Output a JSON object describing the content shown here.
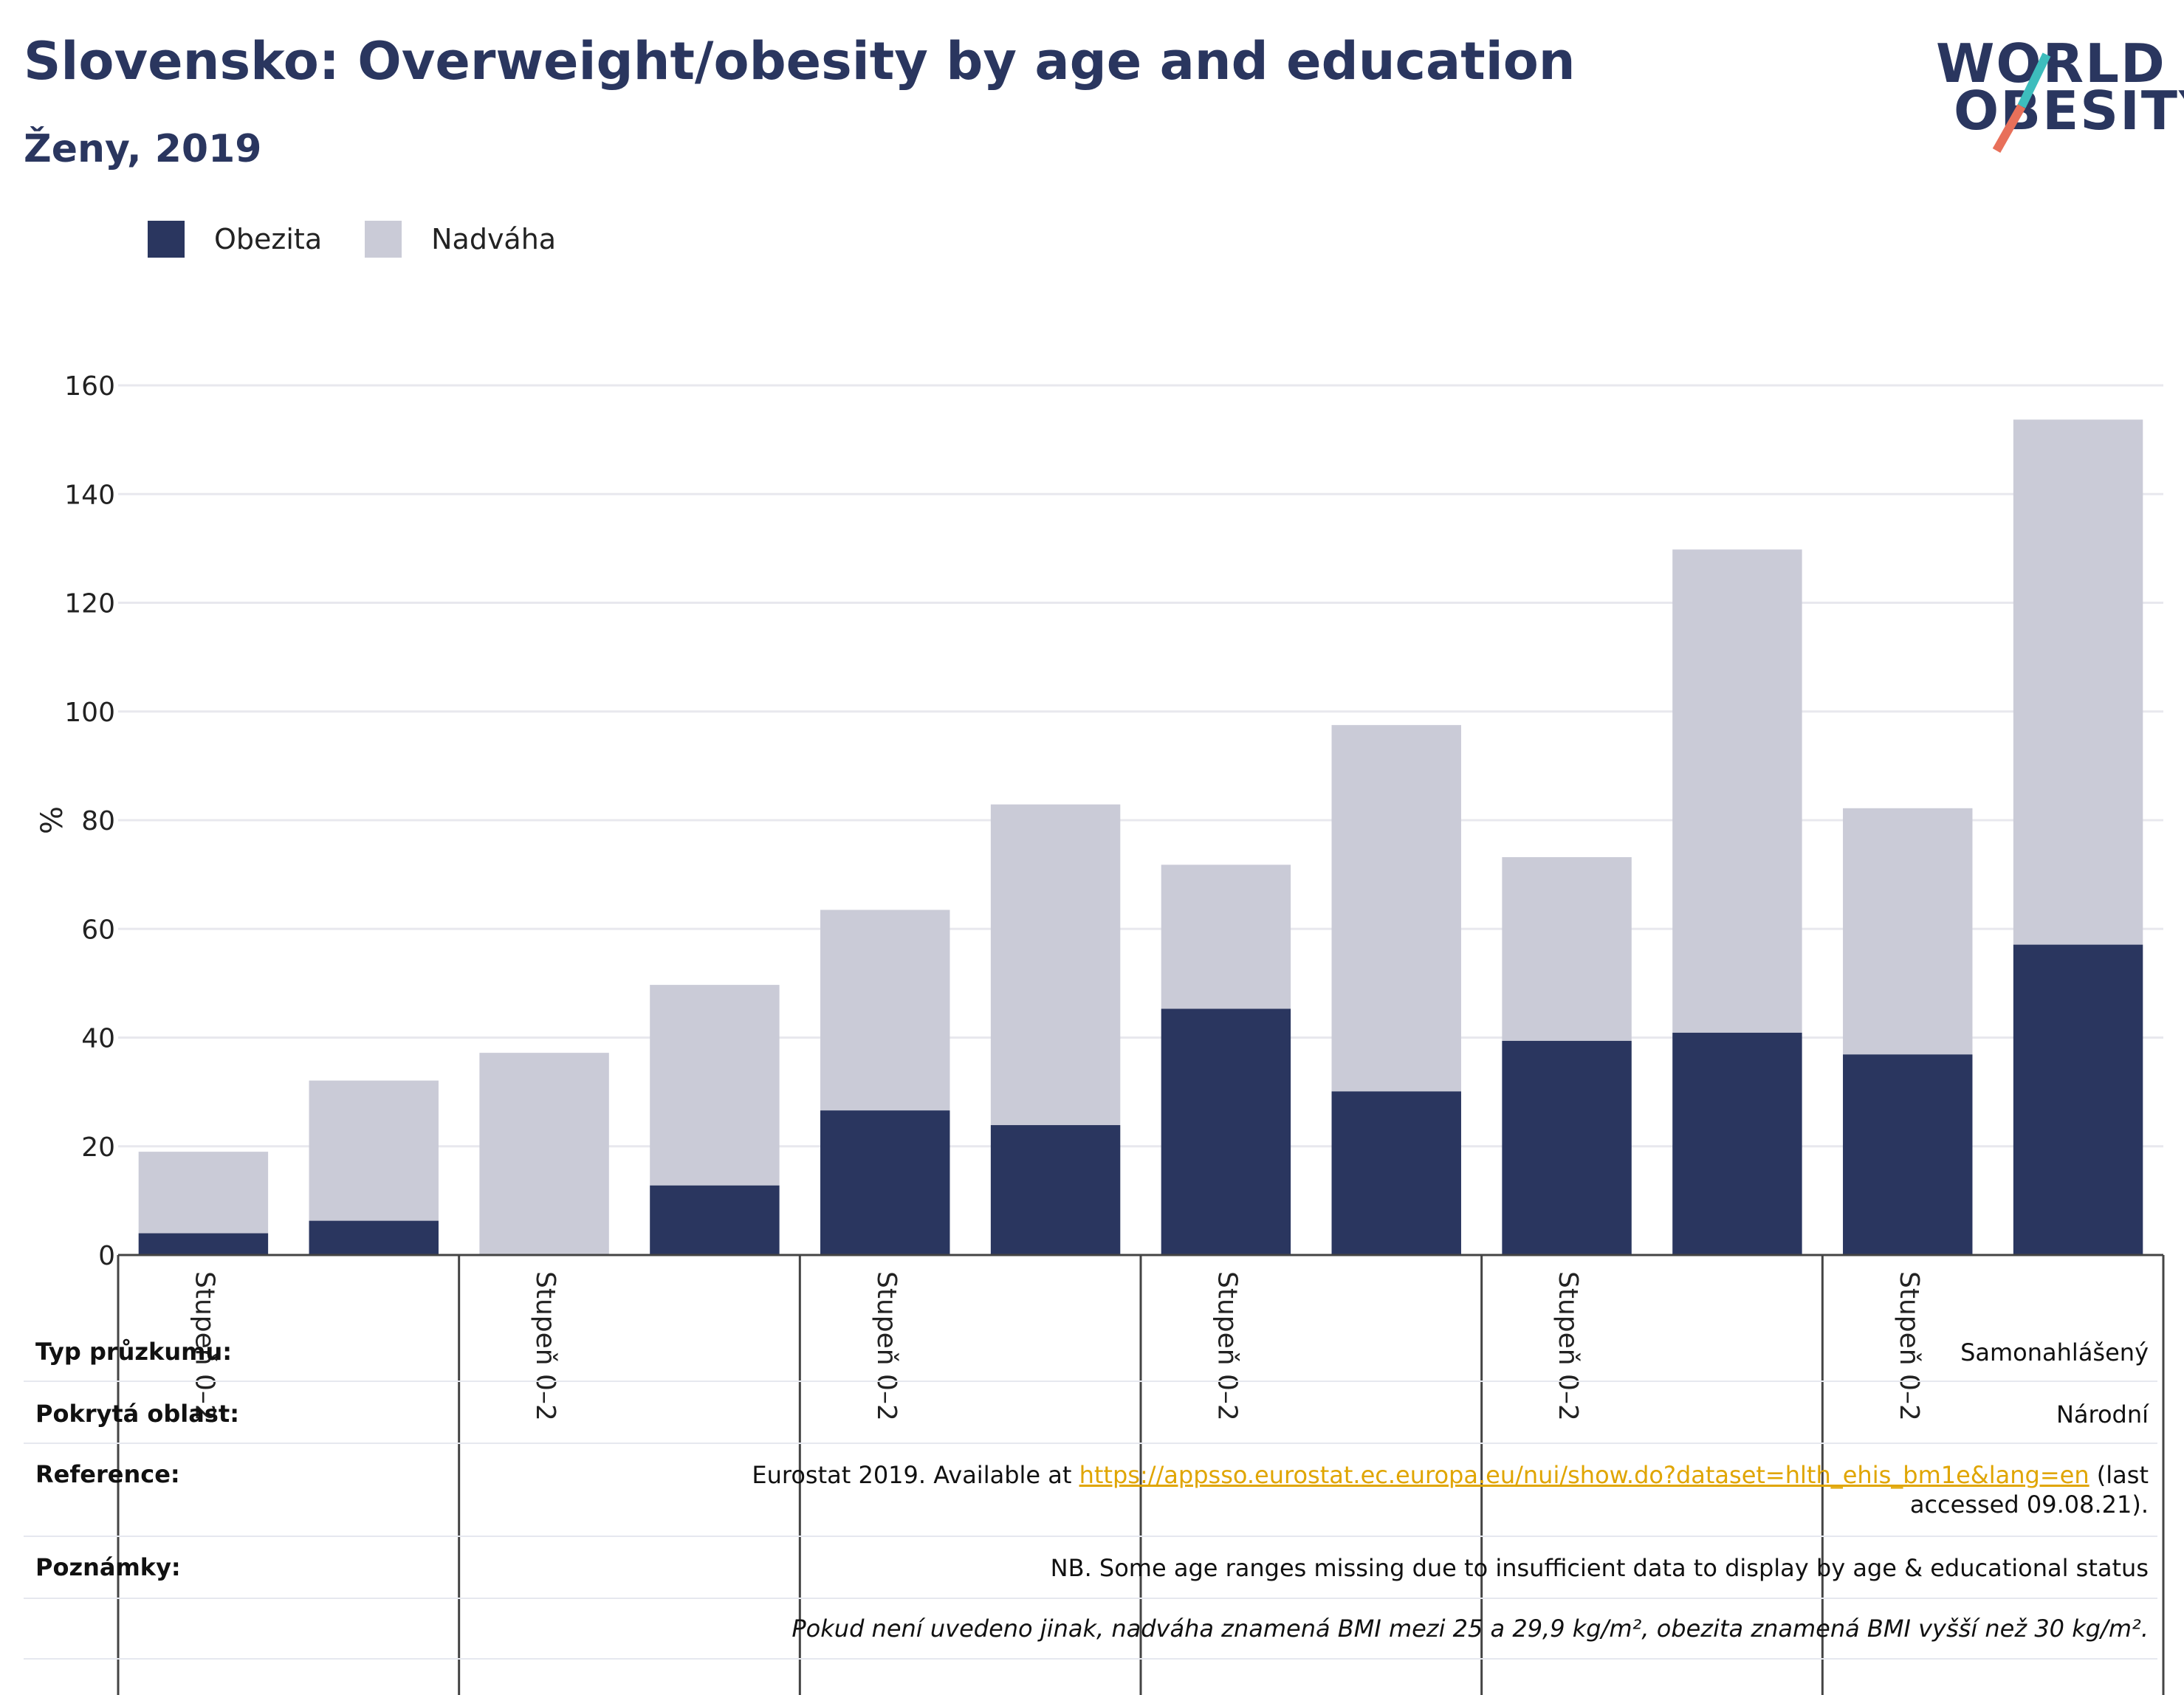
{
  "header": {
    "title": "Slovensko: Overweight/obesity by age and education",
    "subtitle": "Ženy, 2019"
  },
  "logo": {
    "line1": "WORLD",
    "line2": "OBESITY",
    "slash_colors": [
      "#3dbdbd",
      "#e8705a"
    ]
  },
  "colors": {
    "obesity": "#2a365f",
    "overweight": "#cacbd7",
    "grid": "#e8e8ee",
    "link": "#e0a500"
  },
  "chart_data": {
    "type": "bar",
    "stacked": true,
    "ylabel": "%",
    "ylim": [
      0,
      160
    ],
    "yticks": [
      0,
      20,
      40,
      60,
      80,
      100,
      120,
      140,
      160
    ],
    "grid": true,
    "legend_position": "top-left",
    "categories": [
      "Stupeň 0–2",
      "",
      "Stupeň 0–2",
      "",
      "Stupeň 0–2",
      "",
      "Stupeň 0–2",
      "",
      "Stupeň 0–2",
      "",
      "Stupeň 0–2",
      ""
    ],
    "group_labels": [
      "Stupeň 0–2",
      "Stupeň 0–2",
      "Stupeň 0–2",
      "Stupeň 0–2",
      "Stupeň 0–2",
      "Stupeň 0–2"
    ],
    "series": [
      {
        "name": "Obezita",
        "values": [
          4,
          6.3,
          0,
          12.8,
          26.6,
          23.9,
          45.3,
          30.1,
          39.4,
          40.9,
          36.9,
          57.1
        ]
      },
      {
        "name": "Nadváha",
        "values": [
          15,
          25.8,
          37.2,
          36.9,
          36.9,
          59.0,
          26.5,
          67.4,
          33.8,
          88.9,
          45.3,
          96.6
        ]
      }
    ]
  },
  "info": {
    "survey_type": {
      "label": "Typ průzkumu:",
      "value": "Samonahlášený"
    },
    "coverage": {
      "label": "Pokrytá oblast:",
      "value": "Národní"
    },
    "reference": {
      "label": "Reference:",
      "prefix": "Eurostat 2019. Available at",
      "link": "https://appsso.eurostat.ec.europa.eu/nui/show.do?dataset=hlth_ehis_bm1e&lang=en",
      "suffix": "(last accessed 09.08.21)."
    },
    "notes": {
      "label": "Poznámky:",
      "value": "NB. Some age ranges missing due to insufficient data to display by age & educational status"
    },
    "definition": "Pokud není uvedeno jinak, nadváha znamená BMI mezi 25 a 29,9 kg/m², obezita znamená BMI vyšší než 30 kg/m²."
  }
}
